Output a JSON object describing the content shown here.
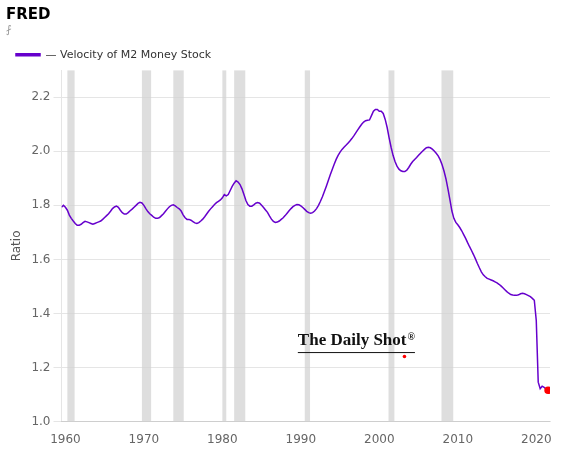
{
  "chart_data": {
    "type": "line",
    "title": "FRED",
    "subtitle": "⨏",
    "ylabel": "Ratio",
    "annotations": [
      "The Daily Shot",
      "®"
    ],
    "legend": "upper left",
    "grid": "y",
    "xlim": [
      1959.5,
      2021.75
    ],
    "ylim": [
      1.0,
      2.3
    ],
    "xticks": [
      1960,
      1970,
      1980,
      1990,
      2000,
      2010,
      2020
    ],
    "yticks": [
      {
        "value": 1.0,
        "label": "1.0"
      },
      1.2,
      1.4,
      1.6,
      1.8,
      {
        "value": 2.0,
        "label": "2.0"
      },
      2.2
    ],
    "recessions": [
      [
        1960.25,
        1961.17
      ],
      [
        1969.75,
        1970.92
      ],
      [
        1973.75,
        1975.08
      ],
      [
        1980.0,
        1980.5
      ],
      [
        1981.5,
        1982.92
      ],
      [
        1990.5,
        1991.17
      ],
      [
        2001.17,
        2001.92
      ],
      [
        2007.92,
        2009.42
      ]
    ],
    "x": [
      1959.5,
      1959.75,
      1960.0,
      1960.25,
      1960.5,
      1960.75,
      1961.0,
      1961.25,
      1961.5,
      1961.75,
      1962.0,
      1962.25,
      1962.5,
      1962.75,
      1963.0,
      1963.25,
      1963.5,
      1963.75,
      1964.0,
      1964.25,
      1964.5,
      1964.75,
      1965.0,
      1965.25,
      1965.5,
      1965.75,
      1966.0,
      1966.25,
      1966.5,
      1966.75,
      1967.0,
      1967.25,
      1967.5,
      1967.75,
      1968.0,
      1968.25,
      1968.5,
      1968.75,
      1969.0,
      1969.25,
      1969.5,
      1969.75,
      1970.0,
      1970.25,
      1970.5,
      1970.75,
      1971.0,
      1971.25,
      1971.5,
      1971.75,
      1972.0,
      1972.25,
      1972.5,
      1972.75,
      1973.0,
      1973.25,
      1973.5,
      1973.75,
      1974.0,
      1974.25,
      1974.5,
      1974.75,
      1975.0,
      1975.25,
      1975.5,
      1975.75,
      1976.0,
      1976.25,
      1976.5,
      1976.75,
      1977.0,
      1977.25,
      1977.5,
      1977.75,
      1978.0,
      1978.25,
      1978.5,
      1978.75,
      1979.0,
      1979.25,
      1979.5,
      1979.75,
      1980.0,
      1980.25,
      1980.5,
      1980.75,
      1981.0,
      1981.25,
      1981.5,
      1981.75,
      1982.0,
      1982.25,
      1982.5,
      1982.75,
      1983.0,
      1983.25,
      1983.5,
      1983.75,
      1984.0,
      1984.25,
      1984.5,
      1984.75,
      1985.0,
      1985.25,
      1985.5,
      1985.75,
      1986.0,
      1986.25,
      1986.5,
      1986.75,
      1987.0,
      1987.25,
      1987.5,
      1987.75,
      1988.0,
      1988.25,
      1988.5,
      1988.75,
      1989.0,
      1989.25,
      1989.5,
      1989.75,
      1990.0,
      1990.25,
      1990.5,
      1990.75,
      1991.0,
      1991.25,
      1991.5,
      1991.75,
      1992.0,
      1992.25,
      1992.5,
      1992.75,
      1993.0,
      1993.25,
      1993.5,
      1993.75,
      1994.0,
      1994.25,
      1994.5,
      1994.75,
      1995.0,
      1995.25,
      1995.5,
      1995.75,
      1996.0,
      1996.25,
      1996.5,
      1996.75,
      1997.0,
      1997.25,
      1997.5,
      1997.75,
      1998.0,
      1998.25,
      1998.5,
      1998.75,
      1999.0,
      1999.25,
      1999.5,
      1999.75,
      2000.0,
      2000.25,
      2000.5,
      2000.75,
      2001.0,
      2001.25,
      2001.5,
      2001.75,
      2002.0,
      2002.25,
      2002.5,
      2002.75,
      2003.0,
      2003.25,
      2003.5,
      2003.75,
      2004.0,
      2004.25,
      2004.5,
      2004.75,
      2005.0,
      2005.25,
      2005.5,
      2005.75,
      2006.0,
      2006.25,
      2006.5,
      2006.75,
      2007.0,
      2007.25,
      2007.5,
      2007.75,
      2008.0,
      2008.25,
      2008.5,
      2008.75,
      2009.0,
      2009.25,
      2009.5,
      2009.75,
      2010.0,
      2010.25,
      2010.5,
      2010.75,
      2011.0,
      2011.25,
      2011.5,
      2011.75,
      2012.0,
      2012.25,
      2012.5,
      2012.75,
      2013.0,
      2013.25,
      2013.5,
      2013.75,
      2014.0,
      2014.25,
      2014.5,
      2014.75,
      2015.0,
      2015.25,
      2015.5,
      2015.75,
      2016.0,
      2016.25,
      2016.5,
      2016.75,
      2017.0,
      2017.25,
      2017.5,
      2017.75,
      2018.0,
      2018.25,
      2018.5,
      2018.75,
      2019.0,
      2019.25,
      2019.5,
      2019.75,
      2020.0,
      2020.25,
      2020.5,
      2020.75,
      2021.0,
      2021.25,
      2021.5
    ],
    "series": [
      {
        "name": "— Velocity of M2 Money Stock",
        "color": "#6600CC",
        "values": [
          1.793,
          1.8,
          1.793,
          1.782,
          1.764,
          1.752,
          1.742,
          1.733,
          1.726,
          1.726,
          1.73,
          1.736,
          1.741,
          1.739,
          1.736,
          1.733,
          1.73,
          1.733,
          1.736,
          1.739,
          1.742,
          1.748,
          1.755,
          1.762,
          1.769,
          1.778,
          1.788,
          1.794,
          1.797,
          1.793,
          1.782,
          1.773,
          1.768,
          1.768,
          1.773,
          1.78,
          1.786,
          1.793,
          1.8,
          1.807,
          1.811,
          1.809,
          1.8,
          1.788,
          1.777,
          1.769,
          1.763,
          1.756,
          1.752,
          1.752,
          1.755,
          1.762,
          1.769,
          1.778,
          1.787,
          1.795,
          1.8,
          1.802,
          1.798,
          1.792,
          1.787,
          1.779,
          1.765,
          1.754,
          1.748,
          1.748,
          1.745,
          1.74,
          1.735,
          1.733,
          1.736,
          1.742,
          1.749,
          1.758,
          1.768,
          1.778,
          1.787,
          1.795,
          1.803,
          1.81,
          1.815,
          1.82,
          1.828,
          1.84,
          1.835,
          1.84,
          1.855,
          1.87,
          1.882,
          1.891,
          1.886,
          1.877,
          1.861,
          1.84,
          1.818,
          1.803,
          1.797,
          1.797,
          1.802,
          1.808,
          1.81,
          1.808,
          1.8,
          1.792,
          1.783,
          1.774,
          1.761,
          1.749,
          1.741,
          1.737,
          1.738,
          1.742,
          1.748,
          1.754,
          1.762,
          1.771,
          1.78,
          1.788,
          1.795,
          1.8,
          1.803,
          1.802,
          1.798,
          1.792,
          1.785,
          1.778,
          1.773,
          1.771,
          1.773,
          1.779,
          1.788,
          1.8,
          1.815,
          1.832,
          1.851,
          1.871,
          1.892,
          1.913,
          1.933,
          1.952,
          1.97,
          1.985,
          1.997,
          2.007,
          2.015,
          2.022,
          2.03,
          2.038,
          2.047,
          2.057,
          2.068,
          2.079,
          2.09,
          2.1,
          2.108,
          2.113,
          2.115,
          2.116,
          2.132,
          2.148,
          2.155,
          2.155,
          2.148,
          2.148,
          2.14,
          2.118,
          2.088,
          2.05,
          2.015,
          1.985,
          1.962,
          1.945,
          1.934,
          1.928,
          1.925,
          1.925,
          1.93,
          1.94,
          1.952,
          1.962,
          1.97,
          1.977,
          1.985,
          1.993,
          2.0,
          2.007,
          2.013,
          2.015,
          2.013,
          2.008,
          2.001,
          1.993,
          1.983,
          1.969,
          1.95,
          1.926,
          1.897,
          1.86,
          1.82,
          1.779,
          1.752,
          1.737,
          1.728,
          1.718,
          1.706,
          1.692,
          1.678,
          1.662,
          1.647,
          1.633,
          1.618,
          1.602,
          1.585,
          1.569,
          1.554,
          1.543,
          1.536,
          1.53,
          1.527,
          1.524,
          1.521,
          1.517,
          1.513,
          1.508,
          1.502,
          1.495,
          1.488,
          1.481,
          1.475,
          1.47,
          1.468,
          1.467,
          1.467,
          1.469,
          1.473,
          1.475,
          1.473,
          1.47,
          1.466,
          1.462,
          1.456,
          1.449,
          1.374,
          1.146,
          1.122,
          1.131,
          1.127,
          1.12,
          1.116
        ]
      }
    ]
  }
}
